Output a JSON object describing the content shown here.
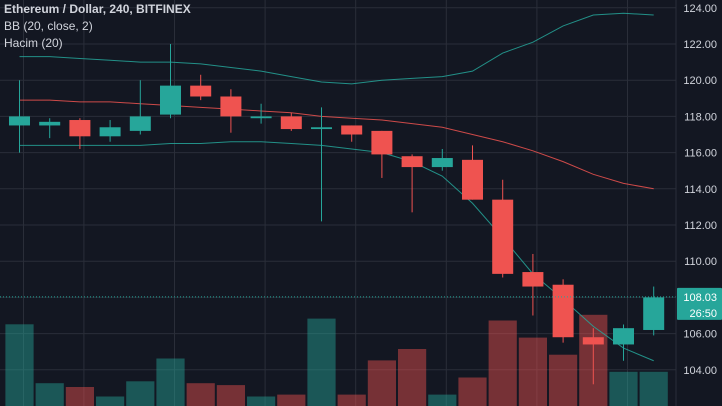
{
  "legend": {
    "symbol": "Ethereum / Dollar, 240, BITFINEX",
    "bb": "BB (20, close, 2)",
    "volume": "Hacim (20)"
  },
  "price_tag": {
    "price": "108.03",
    "countdown": "26:50"
  },
  "colors": {
    "background": "#131722",
    "grid": "#2a2e39",
    "axis_text": "#d1d4dc",
    "up": "#26a69a",
    "down": "#ef5350",
    "bb_band": "#26a69a",
    "bb_basis": "#ef5350",
    "price_line": "#26a69a"
  },
  "chart_data": {
    "type": "candlestick",
    "y_axis": {
      "ticks": [
        "124.00",
        "122.00",
        "120.00",
        "118.00",
        "116.00",
        "114.00",
        "112.00",
        "110.00",
        "108.00",
        "106.00",
        "104.00"
      ],
      "range": [
        103.0,
        124.6
      ],
      "side": "right"
    },
    "current_price": 108.03,
    "candles": [
      {
        "o": 117.5,
        "h": 120.0,
        "l": 116.0,
        "c": 118.0
      },
      {
        "o": 117.5,
        "h": 117.9,
        "l": 116.8,
        "c": 117.7
      },
      {
        "o": 117.8,
        "h": 117.9,
        "l": 116.2,
        "c": 116.9
      },
      {
        "o": 116.9,
        "h": 117.8,
        "l": 116.6,
        "c": 117.4
      },
      {
        "o": 117.2,
        "h": 120.0,
        "l": 117.0,
        "c": 118.0
      },
      {
        "o": 118.1,
        "h": 122.0,
        "l": 117.9,
        "c": 119.7
      },
      {
        "o": 119.7,
        "h": 120.3,
        "l": 118.9,
        "c": 119.1
      },
      {
        "o": 119.1,
        "h": 119.5,
        "l": 117.1,
        "c": 118.0
      },
      {
        "o": 117.9,
        "h": 118.7,
        "l": 117.6,
        "c": 118.0
      },
      {
        "o": 118.0,
        "h": 118.2,
        "l": 117.2,
        "c": 117.3
      },
      {
        "o": 117.3,
        "h": 118.5,
        "l": 112.2,
        "c": 117.4
      },
      {
        "o": 117.5,
        "h": 117.5,
        "l": 116.6,
        "c": 117.0
      },
      {
        "o": 117.2,
        "h": 117.2,
        "l": 114.6,
        "c": 115.9
      },
      {
        "o": 115.8,
        "h": 115.9,
        "l": 112.7,
        "c": 115.2
      },
      {
        "o": 115.2,
        "h": 116.2,
        "l": 115.0,
        "c": 115.7
      },
      {
        "o": 115.6,
        "h": 116.4,
        "l": 113.4,
        "c": 113.4
      },
      {
        "o": 113.4,
        "h": 114.5,
        "l": 109.1,
        "c": 109.3
      },
      {
        "o": 109.4,
        "h": 110.4,
        "l": 107.0,
        "c": 108.6
      },
      {
        "o": 108.7,
        "h": 109.0,
        "l": 105.5,
        "c": 105.8
      },
      {
        "o": 105.8,
        "h": 106.3,
        "l": 103.2,
        "c": 105.4
      },
      {
        "o": 105.4,
        "h": 106.5,
        "l": 104.5,
        "c": 106.3
      },
      {
        "o": 106.2,
        "h": 108.6,
        "l": 105.9,
        "c": 108.0
      }
    ],
    "bb_upper": [
      121.3,
      121.3,
      121.2,
      121.1,
      121.0,
      121.0,
      120.9,
      120.7,
      120.5,
      120.2,
      119.9,
      119.8,
      120.0,
      120.1,
      120.2,
      120.5,
      121.5,
      122.1,
      123.0,
      123.6,
      123.7,
      123.6
    ],
    "bb_basis": [
      118.9,
      118.9,
      118.8,
      118.8,
      118.7,
      118.6,
      118.5,
      118.4,
      118.3,
      118.2,
      118.0,
      117.9,
      117.8,
      117.6,
      117.4,
      117.0,
      116.6,
      116.1,
      115.5,
      114.8,
      114.3,
      114.0
    ],
    "bb_lower": [
      116.4,
      116.4,
      116.4,
      116.4,
      116.4,
      116.5,
      116.5,
      116.6,
      116.6,
      116.5,
      116.4,
      116.2,
      116.0,
      115.5,
      114.7,
      113.2,
      111.3,
      109.3,
      107.9,
      106.4,
      105.2,
      104.5
    ],
    "volume": [
      0.43,
      0.12,
      0.1,
      0.05,
      0.13,
      0.25,
      0.12,
      0.11,
      0.05,
      0.06,
      0.46,
      0.06,
      0.24,
      0.3,
      0.06,
      0.15,
      0.45,
      0.36,
      0.27,
      0.48,
      0.18,
      0.18
    ]
  }
}
